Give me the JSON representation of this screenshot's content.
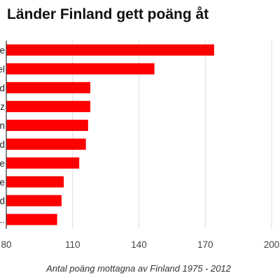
{
  "chart_data": {
    "type": "bar",
    "orientation": "horizontal",
    "title": "Länder Finland gett poäng åt",
    "xlabel": "Antal poäng mottagna av Finland 1975 - 2012",
    "ylabel": "",
    "categories": [
      "e",
      "el",
      "d",
      "z",
      "n",
      "d",
      "e",
      "e",
      "d",
      "..."
    ],
    "values": [
      174,
      147,
      118,
      118,
      117,
      116,
      113,
      106,
      105,
      103
    ],
    "xlim": [
      80,
      200
    ],
    "xticks": [
      80,
      110,
      140,
      170,
      200
    ],
    "grid": true,
    "legend": "none",
    "bar_color": "#ff0000"
  }
}
